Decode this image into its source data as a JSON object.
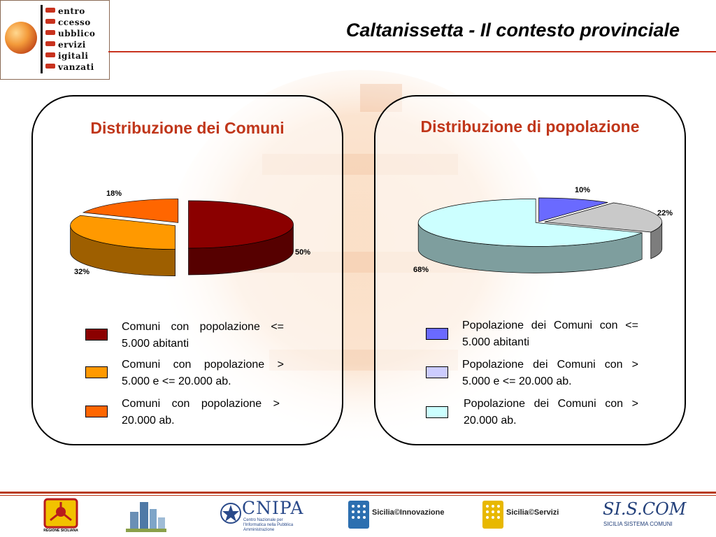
{
  "header": {
    "title": "Caltanissetta - Il contesto provinciale",
    "logo_words": [
      "entro",
      "ccesso",
      "ubblico",
      "ervizi",
      "igitali",
      "vanzati"
    ]
  },
  "colors": {
    "accent": "#c0361a",
    "rule": "#b83a1a"
  },
  "chart_data": [
    {
      "type": "pie",
      "title": "Distribuzione dei Comuni",
      "categories": [
        "Comuni con popolazione <= 5.000 abitanti",
        "Comuni con popolazione > 5.000 e <= 20.000 ab.",
        "Comuni con popolazione > 20.000 ab."
      ],
      "values": [
        50,
        32,
        18
      ],
      "value_labels": [
        "50%",
        "32%",
        "18%"
      ],
      "colors": [
        "#8b0000",
        "#ff9900",
        "#ff6600"
      ],
      "legend_placement": "bottom"
    },
    {
      "type": "pie",
      "title": "Distribuzione di popolazione",
      "categories": [
        "Popolazione dei Comuni con <= 5.000 abitanti",
        "Popolazione dei Comuni con > 5.000 e <= 20.000 ab.",
        "Popolazione dei Comuni con > 20.000 ab."
      ],
      "values": [
        10,
        22,
        68
      ],
      "value_labels": [
        "10%",
        "22%",
        "68%"
      ],
      "colors": [
        "#6a6aff",
        "#c9c9c9",
        "#ccffff"
      ],
      "legend_colors": [
        "#6a6aff",
        "#ccccff",
        "#ccffff"
      ],
      "legend_placement": "bottom"
    }
  ],
  "footer": {
    "regione_label": "REGIONE SICILIANA",
    "cnipa_label": "CNIPA",
    "cnipa_sub": "Centro Nazionale per l'Informatica nella Pubblica Amministrazione",
    "sicilia_innovazione": "Sicilia©Innovazione",
    "sicilia_servizi": "Sicilia©Servizi",
    "siscom_label": "SI.S.COM",
    "siscom_sub": "SICILIA SISTEMA COMUNI"
  }
}
